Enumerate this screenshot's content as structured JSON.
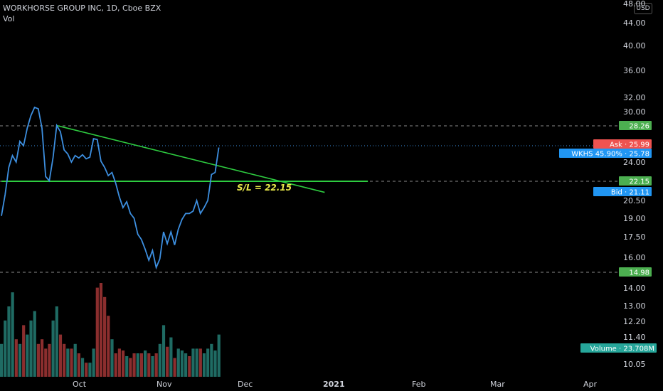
{
  "header": {
    "title": "WORKHORSE GROUP INC, 1D, Cboe BZX",
    "vol_label": "Vol",
    "currency_button": "USD"
  },
  "colors": {
    "background": "#000000",
    "price_line": "#3d8fe0",
    "trend_line": "#2ecc40",
    "up_volume": "#1f6b63",
    "down_volume": "#8b2e2e",
    "ask_label": "#ef5350",
    "wkhs_label": "#2196f3",
    "bid_label": "#2196f3",
    "level_label": "#4caf50",
    "volume_label": "#26a69a",
    "annotation": "#e8e84a"
  },
  "chart_data": {
    "type": "line",
    "symbol": "WKHS",
    "title": "WORKHORSE GROUP INC, 1D, Cboe BZX",
    "x_ticks": [
      "Oct",
      "Nov",
      "Dec",
      "2021",
      "Feb",
      "Mar",
      "Apr"
    ],
    "bold_x_ticks": [
      "2021"
    ],
    "y_ticks": [
      44.0,
      40.0,
      36.0,
      32.0,
      30.0,
      26.0,
      24.0,
      20.5,
      19.0,
      17.5,
      16.0,
      14.0,
      13.0,
      12.2,
      11.4,
      10.05
    ],
    "y_tick_labels": [
      "44.00",
      "40.00",
      "36.00",
      "32.00",
      "30.00",
      "26.00",
      "24.00",
      "20.50",
      "19.00",
      "17.50",
      "16.00",
      "14.00",
      "13.00",
      "12.20",
      "11.40",
      "10.05"
    ],
    "price_series": {
      "name": "WKHS",
      "values": [
        19.2,
        21.0,
        23.5,
        24.8,
        24.0,
        26.5,
        26.0,
        28.0,
        29.5,
        30.6,
        30.4,
        28.0,
        22.6,
        22.2,
        24.5,
        28.3,
        27.6,
        25.5,
        25.0,
        24.0,
        24.8,
        24.5,
        24.9,
        24.4,
        24.6,
        26.8,
        26.7,
        24.1,
        23.5,
        22.7,
        23.0,
        22.0,
        20.8,
        19.9,
        20.4,
        19.4,
        19.0,
        17.7,
        17.3,
        16.6,
        15.8,
        16.5,
        15.3,
        15.9,
        17.9,
        17.0,
        17.9,
        16.9,
        18.1,
        18.9,
        19.4,
        19.4,
        19.6,
        20.5,
        19.4,
        19.9,
        20.5,
        22.8,
        23.0,
        25.78
      ]
    },
    "volume_series": {
      "name": "Vol",
      "up": [
        true,
        true,
        true,
        true,
        false,
        true,
        false,
        true,
        true,
        true,
        false,
        false,
        false,
        false,
        true,
        true,
        false,
        false,
        true,
        false,
        true,
        false,
        true,
        false,
        true,
        true,
        false,
        false,
        false,
        false,
        true,
        false,
        false,
        false,
        true,
        false,
        false,
        true,
        false,
        true,
        false,
        true,
        false,
        true,
        true,
        false,
        true,
        false,
        true,
        true,
        true,
        false,
        true,
        true,
        false,
        true,
        true,
        true,
        true,
        true
      ],
      "relative": [
        0.35,
        0.6,
        0.75,
        0.9,
        0.4,
        0.35,
        0.55,
        0.45,
        0.6,
        0.7,
        0.35,
        0.4,
        0.3,
        0.35,
        0.6,
        0.75,
        0.45,
        0.35,
        0.3,
        0.3,
        0.35,
        0.25,
        0.2,
        0.15,
        0.15,
        0.3,
        0.95,
        1.0,
        0.85,
        0.65,
        0.4,
        0.25,
        0.3,
        0.28,
        0.22,
        0.2,
        0.25,
        0.25,
        0.25,
        0.28,
        0.25,
        0.22,
        0.25,
        0.35,
        0.55,
        0.32,
        0.42,
        0.2,
        0.3,
        0.28,
        0.25,
        0.22,
        0.3,
        0.3,
        0.3,
        0.25,
        0.3,
        0.35,
        0.28,
        0.45
      ]
    },
    "horizontal_levels": [
      {
        "value": 28.26,
        "label": "28.26",
        "style": "dashed"
      },
      {
        "value": 22.15,
        "label": "22.15",
        "style": "dashed"
      },
      {
        "value": 14.98,
        "label": "14.98",
        "style": "dashed"
      }
    ],
    "annotation": "S/L = 22.15",
    "trend_lines": [
      {
        "from": {
          "index": 15,
          "value": 28.3
        },
        "to": {
          "index": 80,
          "value": 21.2
        }
      },
      {
        "from": {
          "index": 0,
          "value": 22.15
        },
        "to": {
          "index": 84,
          "value": 22.15
        }
      }
    ],
    "price_labels": [
      {
        "label": "Ask",
        "value": "25.99"
      },
      {
        "label": "WKHS 45.90%",
        "value": "25.78"
      },
      {
        "label": "Bid",
        "value": "21.11"
      }
    ],
    "volume_label": {
      "label": "Volume",
      "value": "23.708M"
    },
    "axis_top_label": "48.00",
    "grid": false
  }
}
